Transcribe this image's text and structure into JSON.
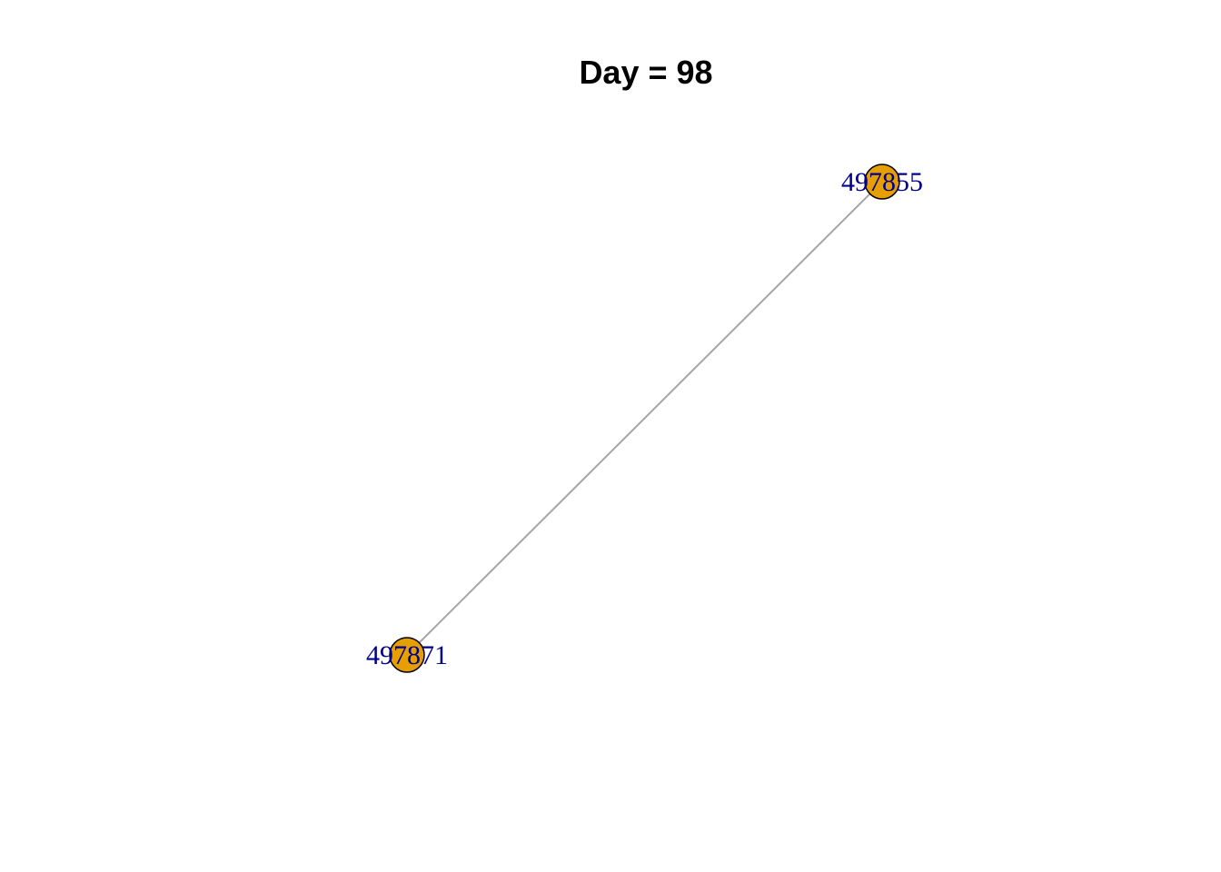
{
  "title": "Day = 98",
  "nodes": [
    {
      "id": "497855",
      "label": "497855"
    },
    {
      "id": "497871",
      "label": "497871"
    }
  ],
  "edges": [
    {
      "source": "497855",
      "target": "497871"
    }
  ],
  "colors": {
    "node_fill": "#E69F00",
    "node_stroke": "#000000",
    "edge": "#A6A6A6",
    "label": "#00008B"
  }
}
